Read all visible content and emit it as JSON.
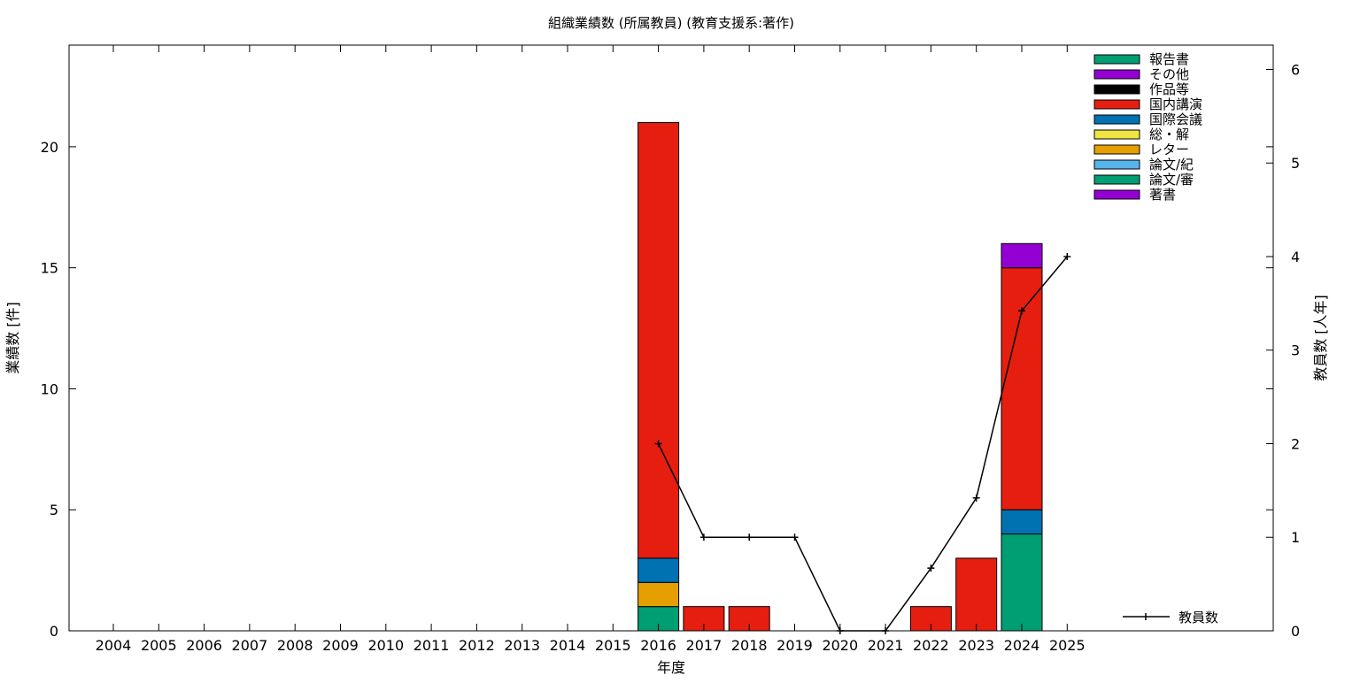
{
  "chart_data": {
    "type": "bar",
    "title": "組織業績数 (所属教員) (教育支援系:著作)",
    "xlabel": "年度",
    "ylabel": "業績数 [件]",
    "y2label": "教員数 [人年]",
    "ylim": [
      0,
      24.2
    ],
    "y2lim": [
      0,
      6.26
    ],
    "yticks": [
      0,
      5,
      10,
      15,
      20
    ],
    "y2ticks": [
      0,
      1,
      2,
      3,
      4,
      5,
      6
    ],
    "categories": [
      "2004",
      "2005",
      "2006",
      "2007",
      "2008",
      "2009",
      "2010",
      "2011",
      "2012",
      "2013",
      "2014",
      "2015",
      "2016",
      "2017",
      "2018",
      "2019",
      "2020",
      "2021",
      "2022",
      "2023",
      "2024",
      "2025"
    ],
    "legend_position": "top-right",
    "series": [
      {
        "name": "論文/審",
        "color": "#009e73",
        "values": [
          0,
          0,
          0,
          0,
          0,
          0,
          0,
          0,
          0,
          0,
          0,
          0,
          1,
          0,
          0,
          0,
          0,
          0,
          0,
          0,
          4,
          0
        ]
      },
      {
        "name": "論文/紀",
        "color": "#56b4e9",
        "values": [
          0,
          0,
          0,
          0,
          0,
          0,
          0,
          0,
          0,
          0,
          0,
          0,
          0,
          0,
          0,
          0,
          0,
          0,
          0,
          0,
          0,
          0
        ]
      },
      {
        "name": "レター",
        "color": "#e69f00",
        "values": [
          0,
          0,
          0,
          0,
          0,
          0,
          0,
          0,
          0,
          0,
          0,
          0,
          1,
          0,
          0,
          0,
          0,
          0,
          0,
          0,
          0,
          0
        ]
      },
      {
        "name": "総・解",
        "color": "#f0e442",
        "values": [
          0,
          0,
          0,
          0,
          0,
          0,
          0,
          0,
          0,
          0,
          0,
          0,
          0,
          0,
          0,
          0,
          0,
          0,
          0,
          0,
          0,
          0
        ]
      },
      {
        "name": "国際会議",
        "color": "#0072b2",
        "values": [
          0,
          0,
          0,
          0,
          0,
          0,
          0,
          0,
          0,
          0,
          0,
          0,
          1,
          0,
          0,
          0,
          0,
          0,
          0,
          0,
          1,
          0
        ]
      },
      {
        "name": "国内講演",
        "color": "#e51e10",
        "values": [
          0,
          0,
          0,
          0,
          0,
          0,
          0,
          0,
          0,
          0,
          0,
          0,
          18,
          1,
          1,
          0,
          0,
          0,
          1,
          3,
          10,
          0
        ]
      },
      {
        "name": "作品等",
        "color": "#000000",
        "values": [
          0,
          0,
          0,
          0,
          0,
          0,
          0,
          0,
          0,
          0,
          0,
          0,
          0,
          0,
          0,
          0,
          0,
          0,
          0,
          0,
          0,
          0
        ]
      },
      {
        "name": "その他",
        "color": "#9400d3",
        "values": [
          0,
          0,
          0,
          0,
          0,
          0,
          0,
          0,
          0,
          0,
          0,
          0,
          0,
          0,
          0,
          0,
          0,
          0,
          0,
          0,
          0,
          0
        ]
      },
      {
        "name": "報告書",
        "color": "#009e73",
        "values": [
          0,
          0,
          0,
          0,
          0,
          0,
          0,
          0,
          0,
          0,
          0,
          0,
          0,
          0,
          0,
          0,
          0,
          0,
          0,
          0,
          0,
          0
        ]
      },
      {
        "name": "著書",
        "color": "#9400d3",
        "values": [
          0,
          0,
          0,
          0,
          0,
          0,
          0,
          0,
          0,
          0,
          0,
          0,
          0,
          0,
          0,
          0,
          0,
          0,
          0,
          0,
          1,
          0
        ]
      }
    ],
    "legend_order": [
      "報告書",
      "その他",
      "作品等",
      "国内講演",
      "国際会議",
      "総・解",
      "レター",
      "論文/紀",
      "論文/審",
      "著書"
    ],
    "line_series": {
      "name": "教員数",
      "color": "#000000",
      "x": [
        "2016",
        "2017",
        "2018",
        "2019",
        "2020",
        "2021",
        "2022",
        "2023",
        "2024",
        "2025"
      ],
      "values": [
        2,
        1,
        1,
        1,
        0,
        0,
        0.67,
        1.42,
        3.42,
        4.0
      ]
    }
  }
}
